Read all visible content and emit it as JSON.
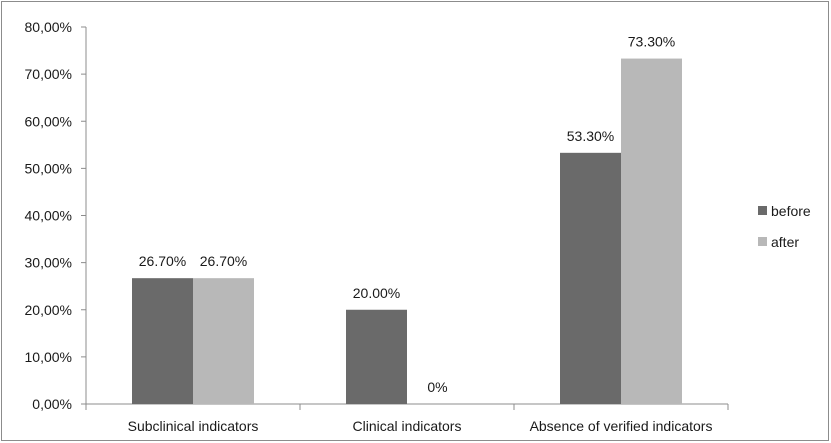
{
  "chart_data": {
    "type": "bar",
    "categories": [
      "Subclinical indicators",
      "Clinical indicators",
      "Absence of verified indicators"
    ],
    "series": [
      {
        "name": "before",
        "color": "#6a6a6a",
        "values": [
          26.7,
          20.0,
          53.3
        ],
        "labels": [
          "26.70%",
          "20.00%",
          "53.30%"
        ]
      },
      {
        "name": "after",
        "color": "#b8b8b8",
        "values": [
          26.7,
          0,
          73.3
        ],
        "labels": [
          "26.70%",
          "0%",
          "73.30%"
        ]
      }
    ],
    "ylim": [
      0,
      80
    ],
    "yticks": [
      0,
      10,
      20,
      30,
      40,
      50,
      60,
      70,
      80
    ],
    "ytick_labels": [
      "0,00%",
      "10,00%",
      "20,00%",
      "30,00%",
      "40,00%",
      "50,00%",
      "60,00%",
      "70,00%",
      "80,00%"
    ],
    "grid": false,
    "legend_position": "right"
  }
}
